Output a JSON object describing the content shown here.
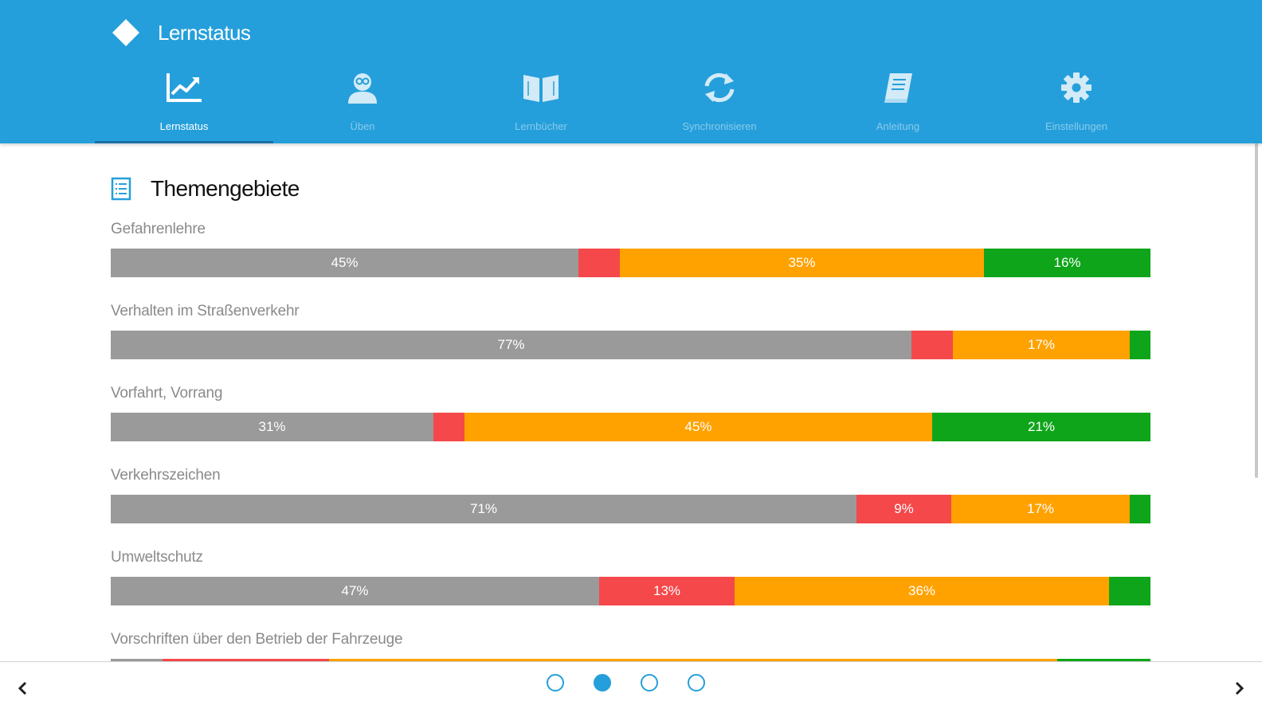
{
  "app": {
    "title": "Lernstatus"
  },
  "tabs": [
    {
      "label": "Lernstatus",
      "icon": "line-chart-icon",
      "active": true
    },
    {
      "label": "Üben",
      "icon": "student-icon",
      "active": false
    },
    {
      "label": "Lernbücher",
      "icon": "open-book-icon",
      "active": false
    },
    {
      "label": "Synchronisieren",
      "icon": "sync-icon",
      "active": false
    },
    {
      "label": "Anleitung",
      "icon": "manual-icon",
      "active": false
    },
    {
      "label": "Einstellungen",
      "icon": "gear-icon",
      "active": false
    }
  ],
  "section": {
    "title": "Themengebiete",
    "icon": "list-document-icon"
  },
  "colors": {
    "header": "#259fdb",
    "gray": "#9a9a9a",
    "red": "#f5484b",
    "orange": "#ffa200",
    "green": "#0ea51a"
  },
  "topics": [
    {
      "name": "Gefahrenlehre",
      "segments": [
        {
          "color": "gray",
          "value": 45,
          "label": "45%"
        },
        {
          "color": "red",
          "value": 4,
          "label": ""
        },
        {
          "color": "orange",
          "value": 35,
          "label": "35%"
        },
        {
          "color": "green",
          "value": 16,
          "label": "16%"
        }
      ]
    },
    {
      "name": "Verhalten im Straßenverkehr",
      "segments": [
        {
          "color": "gray",
          "value": 77,
          "label": "77%"
        },
        {
          "color": "red",
          "value": 4,
          "label": ""
        },
        {
          "color": "orange",
          "value": 17,
          "label": "17%"
        },
        {
          "color": "green",
          "value": 2,
          "label": ""
        }
      ]
    },
    {
      "name": "Vorfahrt, Vorrang",
      "segments": [
        {
          "color": "gray",
          "value": 31,
          "label": "31%"
        },
        {
          "color": "red",
          "value": 3,
          "label": ""
        },
        {
          "color": "orange",
          "value": 45,
          "label": "45%"
        },
        {
          "color": "green",
          "value": 21,
          "label": "21%"
        }
      ]
    },
    {
      "name": "Verkehrszeichen",
      "segments": [
        {
          "color": "gray",
          "value": 71,
          "label": "71%"
        },
        {
          "color": "red",
          "value": 9,
          "label": "9%"
        },
        {
          "color": "orange",
          "value": 17,
          "label": "17%"
        },
        {
          "color": "green",
          "value": 2,
          "label": ""
        }
      ]
    },
    {
      "name": "Umweltschutz",
      "segments": [
        {
          "color": "gray",
          "value": 47,
          "label": "47%"
        },
        {
          "color": "red",
          "value": 13,
          "label": "13%"
        },
        {
          "color": "orange",
          "value": 36,
          "label": "36%"
        },
        {
          "color": "green",
          "value": 4,
          "label": ""
        }
      ]
    },
    {
      "name": "Vorschriften über den Betrieb der Fahrzeuge",
      "segments": [
        {
          "color": "gray",
          "value": 5,
          "label": ""
        },
        {
          "color": "red",
          "value": 16,
          "label": ""
        },
        {
          "color": "orange",
          "value": 70,
          "label": ""
        },
        {
          "color": "green",
          "value": 9,
          "label": ""
        }
      ]
    }
  ],
  "pager": {
    "pages": 4,
    "current": 2,
    "prev_icon": "chevron-left-icon",
    "next_icon": "chevron-right-icon"
  }
}
